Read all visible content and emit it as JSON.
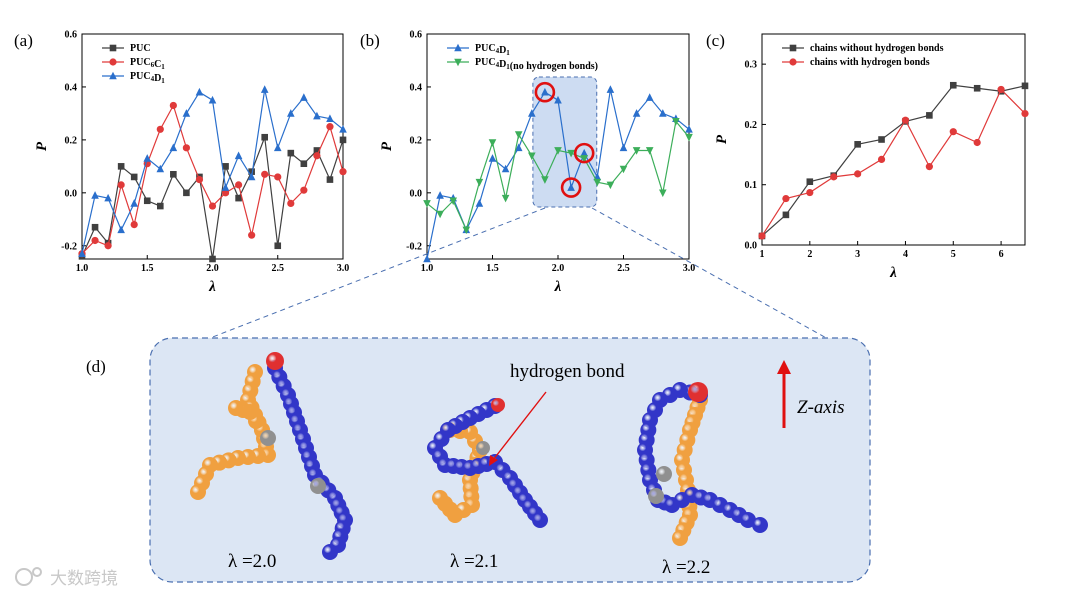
{
  "chart_data": [
    {
      "panel": "(a)",
      "type": "line",
      "xlabel": "λ",
      "ylabel": "P",
      "xlim": [
        1.0,
        3.0
      ],
      "ylim": [
        -0.25,
        0.6
      ],
      "xticks": [
        "1.0",
        "1.5",
        "2.0",
        "2.5",
        "3.0"
      ],
      "xtick_values": [
        1.0,
        1.5,
        2.0,
        2.5,
        3.0
      ],
      "yticks": [
        "-0.2",
        "0.0",
        "0.2",
        "0.4",
        "0.6"
      ],
      "ytick_values": [
        -0.2,
        0.0,
        0.2,
        0.4,
        0.6
      ],
      "legend_position": "top-left",
      "x": [
        1.0,
        1.1,
        1.2,
        1.3,
        1.4,
        1.5,
        1.6,
        1.7,
        1.8,
        1.9,
        2.0,
        2.1,
        2.2,
        2.3,
        2.4,
        2.5,
        2.6,
        2.7,
        2.8,
        2.9,
        3.0
      ],
      "series": [
        {
          "name": "PUC",
          "sub": "",
          "color": "#404040",
          "marker": "square",
          "values": [
            -0.24,
            -0.13,
            -0.19,
            0.1,
            0.06,
            -0.03,
            -0.05,
            0.07,
            0.0,
            0.06,
            -0.25,
            0.1,
            -0.02,
            0.08,
            0.21,
            -0.2,
            0.15,
            0.11,
            0.16,
            0.05,
            0.2
          ]
        },
        {
          "name": "PUC",
          "sub": "6C1",
          "color": "#e03a3a",
          "marker": "circle",
          "values": [
            -0.23,
            -0.18,
            -0.2,
            0.03,
            -0.12,
            0.11,
            0.24,
            0.33,
            0.17,
            0.05,
            -0.05,
            0.0,
            0.03,
            -0.16,
            0.07,
            0.06,
            -0.04,
            0.01,
            0.14,
            0.25,
            0.08
          ]
        },
        {
          "name": "PUC",
          "sub": "4D1",
          "color": "#2a6fcc",
          "marker": "triangle",
          "values": [
            -0.23,
            -0.01,
            -0.02,
            -0.14,
            -0.04,
            0.13,
            0.09,
            0.17,
            0.3,
            0.38,
            0.35,
            0.02,
            0.14,
            0.06,
            0.39,
            0.17,
            0.3,
            0.36,
            0.29,
            0.28,
            0.24
          ]
        }
      ]
    },
    {
      "panel": "(b)",
      "type": "line",
      "xlabel": "λ",
      "ylabel": "P",
      "xlim": [
        1.0,
        3.0
      ],
      "ylim": [
        -0.25,
        0.6
      ],
      "xticks": [
        "1.0",
        "1.5",
        "2.0",
        "2.5",
        "3.0"
      ],
      "xtick_values": [
        1.0,
        1.5,
        2.0,
        2.5,
        3.0
      ],
      "yticks": [
        "-0.2",
        "0.0",
        "0.2",
        "0.4",
        "0.6"
      ],
      "ytick_values": [
        -0.2,
        0.0,
        0.2,
        0.4,
        0.6
      ],
      "legend_position": "top-left",
      "x": [
        1.0,
        1.1,
        1.2,
        1.3,
        1.4,
        1.5,
        1.6,
        1.7,
        1.8,
        1.9,
        2.0,
        2.1,
        2.2,
        2.3,
        2.4,
        2.5,
        2.6,
        2.7,
        2.8,
        2.9,
        3.0
      ],
      "series": [
        {
          "name": "PUC",
          "sub": "4D1",
          "suffix": "",
          "color": "#2a6fcc",
          "marker": "triangle",
          "values": [
            -0.25,
            -0.01,
            -0.02,
            -0.14,
            -0.04,
            0.13,
            0.09,
            0.17,
            0.3,
            0.38,
            0.35,
            0.02,
            0.15,
            0.06,
            0.39,
            0.17,
            0.3,
            0.36,
            0.3,
            0.28,
            0.24
          ]
        },
        {
          "name": "PUC",
          "sub": "4D1",
          "suffix": "(no hydrogen bonds)",
          "color": "#3cae5a",
          "marker": "triangle-down",
          "values": [
            -0.04,
            -0.08,
            -0.03,
            -0.14,
            0.04,
            0.19,
            -0.02,
            0.22,
            0.14,
            0.05,
            0.16,
            0.15,
            0.13,
            0.04,
            0.03,
            0.09,
            0.16,
            0.16,
            0.0,
            0.27,
            0.21
          ]
        }
      ],
      "highlight_x_range": [
        1.9,
        2.25
      ],
      "circled_points": [
        [
          1.9,
          0.38
        ],
        [
          2.1,
          0.02
        ],
        [
          2.2,
          0.15
        ]
      ]
    },
    {
      "panel": "(c)",
      "type": "line",
      "xlabel": "λ",
      "ylabel": "P",
      "xlim": [
        1.0,
        6.5
      ],
      "ylim": [
        0.0,
        0.35
      ],
      "xticks": [
        "1",
        "2",
        "3",
        "4",
        "5",
        "6"
      ],
      "xtick_values": [
        1,
        2,
        3,
        4,
        5,
        6
      ],
      "yticks": [
        "0.0",
        "0.1",
        "0.2",
        "0.3"
      ],
      "ytick_values": [
        0.0,
        0.1,
        0.2,
        0.3
      ],
      "legend_position": "top-left",
      "series": [
        {
          "name": "chains without hydrogen bonds",
          "color": "#404040",
          "marker": "square",
          "x": [
            1.0,
            1.5,
            2.0,
            2.5,
            3.0,
            3.5,
            4.0,
            4.5,
            5.0,
            5.5,
            6.0,
            6.5
          ],
          "values": [
            0.015,
            0.05,
            0.105,
            0.115,
            0.167,
            0.175,
            0.205,
            0.215,
            0.265,
            0.26,
            0.255,
            0.264
          ]
        },
        {
          "name": "chains with hydrogen bonds",
          "color": "#e03a3a",
          "marker": "circle",
          "x": [
            1.0,
            1.5,
            2.0,
            2.5,
            3.0,
            3.5,
            4.0,
            4.5,
            5.0,
            5.5,
            6.0,
            6.5
          ],
          "values": [
            0.015,
            0.077,
            0.087,
            0.113,
            0.118,
            0.142,
            0.207,
            0.13,
            0.188,
            0.17,
            0.258,
            0.218
          ]
        }
      ]
    }
  ],
  "panel_labels": {
    "a": "(a)",
    "b": "(b)",
    "c": "(c)",
    "d": "(d)"
  },
  "snapshots": {
    "captions": [
      "λ =2.0",
      "λ =2.1",
      "λ =2.2"
    ],
    "annotation": "hydrogen bond",
    "axis_label": "Z-axis",
    "colors": {
      "chain_a": "#3236c8",
      "chain_b": "#f0a040",
      "end_bead": "#e03030",
      "junction": "#909090",
      "panel_bg": "#dce6f4",
      "panel_border": "#4a6fb0"
    }
  },
  "watermark": "大数跨境"
}
